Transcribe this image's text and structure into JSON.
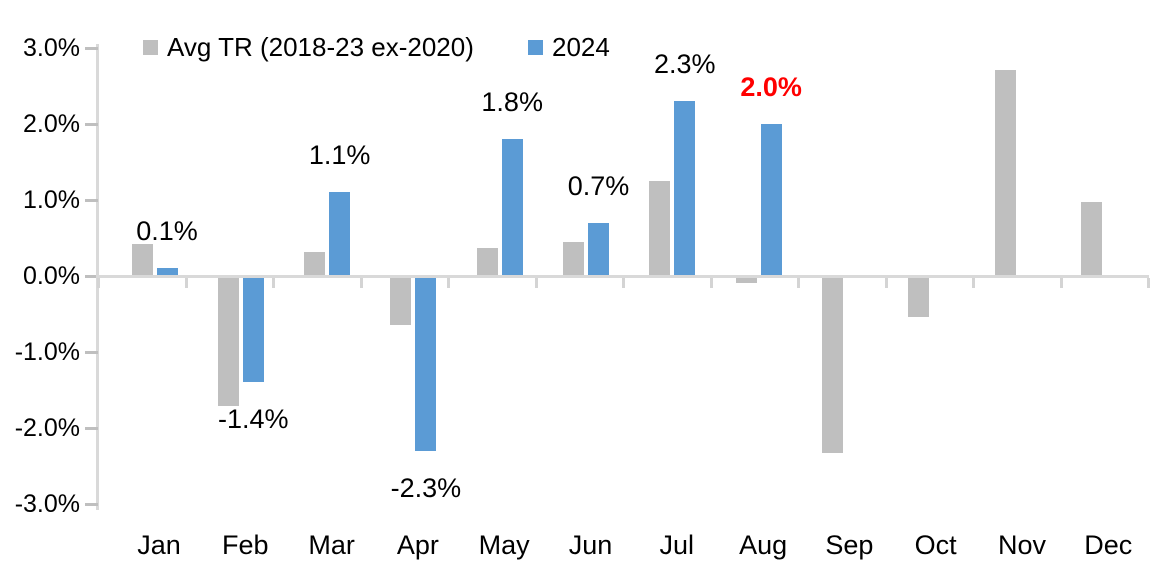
{
  "chart_data": {
    "type": "bar",
    "title": "",
    "xlabel": "",
    "ylabel": "",
    "grid": false,
    "legend_position": "top",
    "background": "#FFFFFF",
    "axis": {
      "line_color": "#D9D9D9",
      "tick_color": "#BFBFBF"
    },
    "y_axis": {
      "min": -3.0,
      "max": 3.0,
      "ticks": [
        {
          "v": 3,
          "label": "3.0%"
        },
        {
          "v": 2,
          "label": "2.0%"
        },
        {
          "v": 1,
          "label": "1.0%"
        },
        {
          "v": 0,
          "label": "0.0%"
        },
        {
          "v": -1,
          "label": "-1.0%"
        },
        {
          "v": -2,
          "label": "-2.0%"
        },
        {
          "v": -3,
          "label": "-3.0%"
        }
      ]
    },
    "categories": [
      "Jan",
      "Feb",
      "Mar",
      "Apr",
      "May",
      "Jun",
      "Jul",
      "Aug",
      "Sep",
      "Oct",
      "Nov",
      "Dec"
    ],
    "series": [
      {
        "name": "Avg TR (2018-23 ex-2020)",
        "color": "#BFBFBF",
        "values": [
          0.42,
          -1.71,
          0.31,
          -0.65,
          0.37,
          0.45,
          1.25,
          -0.09,
          -2.33,
          -0.54,
          2.71,
          0.97
        ]
      },
      {
        "name": "2024",
        "color": "#5B9BD5",
        "values": [
          0.1,
          -1.4,
          1.1,
          -2.3,
          1.8,
          0.7,
          2.3,
          2.0,
          null,
          null,
          null,
          null
        ],
        "labels": [
          {
            "text": "0.1%"
          },
          {
            "text": "-1.4%"
          },
          {
            "text": "1.1%"
          },
          {
            "text": "-2.3%"
          },
          {
            "text": "1.8%"
          },
          {
            "text": "0.7%"
          },
          {
            "text": "2.3%"
          },
          {
            "text": "2.0%",
            "color": "#FF0000",
            "bold": true
          },
          null,
          null,
          null,
          null
        ]
      }
    ],
    "legend": [
      {
        "label": "Avg TR (2018-23 ex-2020)",
        "color": "#BFBFBF"
      },
      {
        "label": "2024",
        "color": "#5B9BD5"
      }
    ]
  }
}
